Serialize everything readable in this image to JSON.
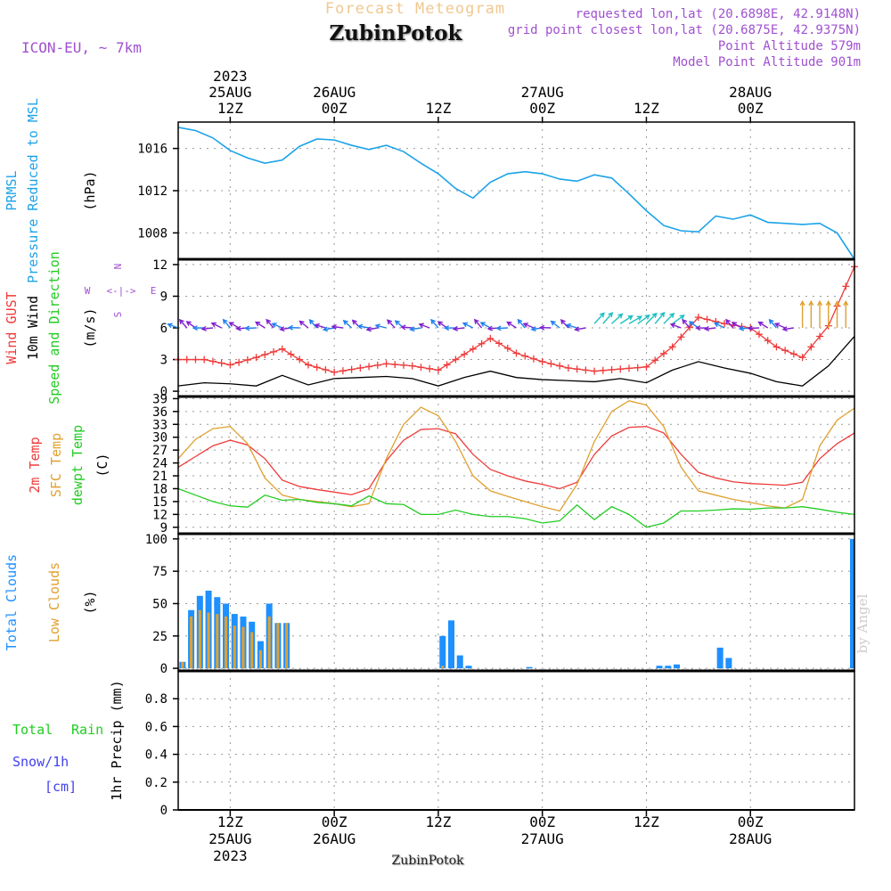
{
  "header": {
    "forecast_label": "Forecast Meteogram",
    "location": "ZubinPotok",
    "model": "ICON-EU, ~ 7km",
    "requested": "requested lon,lat (20.6898E, 42.9148N)",
    "closest": "grid point closest lon,lat (20.6875E, 42.9375N)",
    "point_altitude": "Point Altitude 579m",
    "model_altitude": "Model Point Altitude 901m",
    "footer_location": "ZubinPotok",
    "credit": "by Angel"
  },
  "colors": {
    "pressure": "#1ca3e8",
    "gust": "#ee3b3b",
    "wind": "#000000",
    "temp2m": "#ee3b3b",
    "sfc": "#e0a030",
    "dewpt": "#22cc22",
    "total_clouds": "#1e90ff",
    "low_clouds": "#e0a030",
    "rain": "#22cc22",
    "snow": "#4040ee",
    "header_purple": "#a050d0",
    "header_orange": "#f0c890"
  },
  "chart_data": [
    {
      "type": "line",
      "title": "PRMSL Pressure Reduced to MSL",
      "left_labels": [
        "PRMSL",
        "Pressure Reduced to MSL"
      ],
      "ylabel": "(hPa)",
      "ylim": [
        1005.5,
        1018.5
      ],
      "yticks": [
        1008,
        1012,
        1016
      ],
      "series": [
        {
          "name": "PRMSL",
          "x": [
            0,
            2,
            4,
            6,
            8,
            10,
            12,
            14,
            16,
            18,
            20,
            22,
            24,
            26,
            28,
            30,
            32,
            34,
            36,
            38,
            40,
            42,
            44,
            46,
            48,
            50,
            52,
            54,
            56,
            58,
            60,
            62,
            64,
            66,
            68,
            70,
            72,
            74,
            76,
            78
          ],
          "values": [
            1018,
            1017.7,
            1017,
            1015.8,
            1015.1,
            1014.6,
            1014.9,
            1016.2,
            1016.9,
            1016.8,
            1016.3,
            1015.9,
            1016.3,
            1015.7,
            1014.6,
            1013.6,
            1012.2,
            1011.3,
            1012.8,
            1013.6,
            1013.8,
            1013.6,
            1013.1,
            1012.9,
            1013.5,
            1013.2,
            1011.7,
            1010.1,
            1008.7,
            1008.2,
            1008.1,
            1009.6,
            1009.3,
            1009.7,
            1009,
            1008.9,
            1008.8,
            1008.9,
            1008,
            1005.5
          ]
        }
      ]
    },
    {
      "type": "line",
      "title": "Wind GUST / 10m Wind Speed and Direction",
      "left_labels": [
        "Wind GUST",
        "10m Wind",
        "Speed and Direction"
      ],
      "ylabel": "(m/s)",
      "compass": "N W <-|-> E S",
      "ylim": [
        -0.5,
        12.5
      ],
      "yticks": [
        0,
        3,
        6,
        9,
        12
      ],
      "series": [
        {
          "name": "Wind GUST",
          "x": [
            0,
            3,
            6,
            9,
            12,
            15,
            18,
            21,
            24,
            27,
            30,
            33,
            36,
            39,
            42,
            45,
            48,
            51,
            54,
            57,
            60,
            63,
            66,
            69,
            72,
            75,
            78
          ],
          "values": [
            3,
            3,
            2.5,
            3.2,
            4,
            2.5,
            1.8,
            2.2,
            2.6,
            2.4,
            2,
            3.5,
            5,
            3.6,
            2.8,
            2.2,
            1.9,
            2.1,
            2.3,
            4.2,
            7,
            6.4,
            6,
            4.2,
            3.2,
            6.2,
            11.8
          ]
        },
        {
          "name": "10m Wind",
          "x": [
            0,
            3,
            6,
            9,
            12,
            15,
            18,
            21,
            24,
            27,
            30,
            33,
            36,
            39,
            42,
            45,
            48,
            51,
            54,
            57,
            60,
            63,
            66,
            69,
            72,
            75,
            78
          ],
          "values": [
            0.5,
            0.8,
            0.7,
            0.5,
            1.5,
            0.6,
            1.2,
            1.3,
            1.4,
            1.2,
            0.5,
            1.3,
            1.9,
            1.3,
            1.1,
            1,
            0.9,
            1.2,
            0.8,
            2,
            2.8,
            2.2,
            1.7,
            0.9,
            0.5,
            2.4,
            5.2
          ]
        }
      ],
      "wind_arrows": {
        "baseline": 6,
        "colors_by_segment": [
          "#8020d0",
          "#2080ee",
          "#8020d0",
          "#20c0c0",
          "#8020d0",
          "#e0a030"
        ]
      }
    },
    {
      "type": "line",
      "title": "2m Temp / SFC Temp / dewpt Temp",
      "left_labels": [
        "2m Temp",
        "SFC Temp",
        "dewpt Temp"
      ],
      "ylabel": "(C)",
      "ylim": [
        7.5,
        39.5
      ],
      "yticks": [
        9,
        12,
        15,
        18,
        21,
        24,
        27,
        30,
        33,
        36,
        39
      ],
      "series": [
        {
          "name": "2m Temp",
          "x": [
            0,
            2,
            4,
            6,
            8,
            10,
            12,
            14,
            16,
            18,
            20,
            22,
            24,
            26,
            28,
            30,
            32,
            34,
            36,
            38,
            40,
            42,
            44,
            46,
            48,
            50,
            52,
            54,
            56,
            58,
            60,
            62,
            64,
            66,
            68,
            70,
            72,
            74,
            76,
            78
          ],
          "values": [
            23,
            25.5,
            28,
            29.3,
            28.2,
            25,
            20,
            18.5,
            17.8,
            17.2,
            16.6,
            18,
            24.5,
            29.3,
            31.8,
            32,
            30.8,
            26,
            22.5,
            21,
            19.8,
            19,
            18,
            19.5,
            26,
            30.3,
            32.3,
            32.5,
            31,
            26,
            21.8,
            20.5,
            19.6,
            19.2,
            19,
            18.8,
            19.5,
            25,
            28.5,
            31
          ]
        },
        {
          "name": "SFC Temp",
          "x": [
            0,
            2,
            4,
            6,
            8,
            10,
            12,
            14,
            16,
            18,
            20,
            22,
            24,
            26,
            28,
            30,
            32,
            34,
            36,
            38,
            40,
            42,
            44,
            46,
            48,
            50,
            52,
            54,
            56,
            58,
            60,
            62,
            64,
            66,
            68,
            70,
            72,
            74,
            76,
            78
          ],
          "values": [
            25,
            29.5,
            32,
            32.5,
            28.5,
            20.5,
            16.5,
            15.5,
            15,
            14.5,
            13.8,
            14.5,
            25,
            33,
            37,
            35,
            29,
            21,
            17.5,
            16.2,
            15,
            13.8,
            12.8,
            19,
            29,
            36,
            38.5,
            37.5,
            32.5,
            23,
            17.5,
            16.5,
            15.5,
            14.8,
            14,
            13.5,
            15.5,
            28,
            34,
            36.8
          ]
        },
        {
          "name": "dewpt Temp",
          "x": [
            0,
            2,
            4,
            6,
            8,
            10,
            12,
            14,
            16,
            18,
            20,
            22,
            24,
            26,
            28,
            30,
            32,
            34,
            36,
            38,
            40,
            42,
            44,
            46,
            48,
            50,
            52,
            54,
            56,
            58,
            60,
            62,
            64,
            66,
            68,
            70,
            72,
            74,
            76,
            78
          ],
          "values": [
            18,
            16.5,
            15,
            14,
            13.7,
            16.5,
            15.3,
            15.5,
            14.8,
            14.5,
            14,
            16.3,
            14.5,
            14.3,
            12,
            12,
            13,
            12,
            11.5,
            11.5,
            11,
            10,
            10.5,
            14.2,
            10.8,
            13.8,
            12,
            9,
            10,
            12.8,
            12.8,
            13,
            13.3,
            13.2,
            13.5,
            13.5,
            13.8,
            13.2,
            12.5,
            12
          ]
        }
      ]
    },
    {
      "type": "bar",
      "title": "Total Clouds / Low Clouds",
      "left_labels": [
        "Total Clouds",
        "Low Clouds"
      ],
      "ylabel": "(%)",
      "ylim": [
        -2,
        104
      ],
      "yticks": [
        0,
        25,
        50,
        75,
        100
      ],
      "series": [
        {
          "name": "Total Clouds",
          "x": [
            0.5,
            1.5,
            2.5,
            3.5,
            4.5,
            5.5,
            6.5,
            7.5,
            8.5,
            9.5,
            10.5,
            11.5,
            12.5,
            30.5,
            31.5,
            32.5,
            33.5,
            40.5,
            55.5,
            56.5,
            57.5,
            62.5,
            63.5,
            78
          ],
          "values": [
            5,
            45,
            56,
            60,
            55,
            50,
            42,
            40,
            36,
            21,
            50,
            35,
            35,
            25,
            37,
            10,
            2,
            1,
            2,
            2,
            3,
            16,
            8,
            100
          ]
        },
        {
          "name": "Low Clouds",
          "x": [
            0.5,
            1.5,
            2.5,
            3.5,
            4.5,
            5.5,
            6.5,
            7.5,
            8.5,
            9.5,
            10.5,
            11.5,
            12.5,
            30.5
          ],
          "values": [
            5,
            40,
            45,
            43,
            42,
            40,
            33,
            32,
            28,
            14,
            40,
            35,
            35,
            2
          ]
        }
      ]
    },
    {
      "type": "bar",
      "title": "Total Rain / Snow/1h",
      "left_labels": [
        "Total Rain",
        "Snow/1h",
        "[cm]"
      ],
      "ylabel": "1hr Precip (mm)",
      "ylim": [
        0,
        1
      ],
      "yticks": [
        0,
        0.2,
        0.4,
        0.6,
        0.8
      ],
      "series": [
        {
          "name": "Total Rain",
          "x": [],
          "values": []
        },
        {
          "name": "Snow/1h",
          "x": [],
          "values": []
        }
      ]
    }
  ],
  "time_axis": {
    "top_ticks": [
      {
        "x": 6,
        "lines": [
          "2023",
          "25AUG",
          "12Z"
        ]
      },
      {
        "x": 18,
        "lines": [
          "26AUG",
          "00Z"
        ]
      },
      {
        "x": 30,
        "lines": [
          "12Z"
        ]
      },
      {
        "x": 42,
        "lines": [
          "27AUG",
          "00Z"
        ]
      },
      {
        "x": 54,
        "lines": [
          "12Z"
        ]
      },
      {
        "x": 66,
        "lines": [
          "28AUG",
          "00Z"
        ]
      }
    ],
    "bottom_ticks": [
      {
        "x": 6,
        "lines": [
          "12Z",
          "25AUG",
          "2023"
        ]
      },
      {
        "x": 18,
        "lines": [
          "00Z",
          "26AUG"
        ]
      },
      {
        "x": 30,
        "lines": [
          "12Z"
        ]
      },
      {
        "x": 42,
        "lines": [
          "00Z",
          "27AUG"
        ]
      },
      {
        "x": 54,
        "lines": [
          "12Z"
        ]
      },
      {
        "x": 66,
        "lines": [
          "00Z",
          "28AUG"
        ]
      }
    ]
  }
}
